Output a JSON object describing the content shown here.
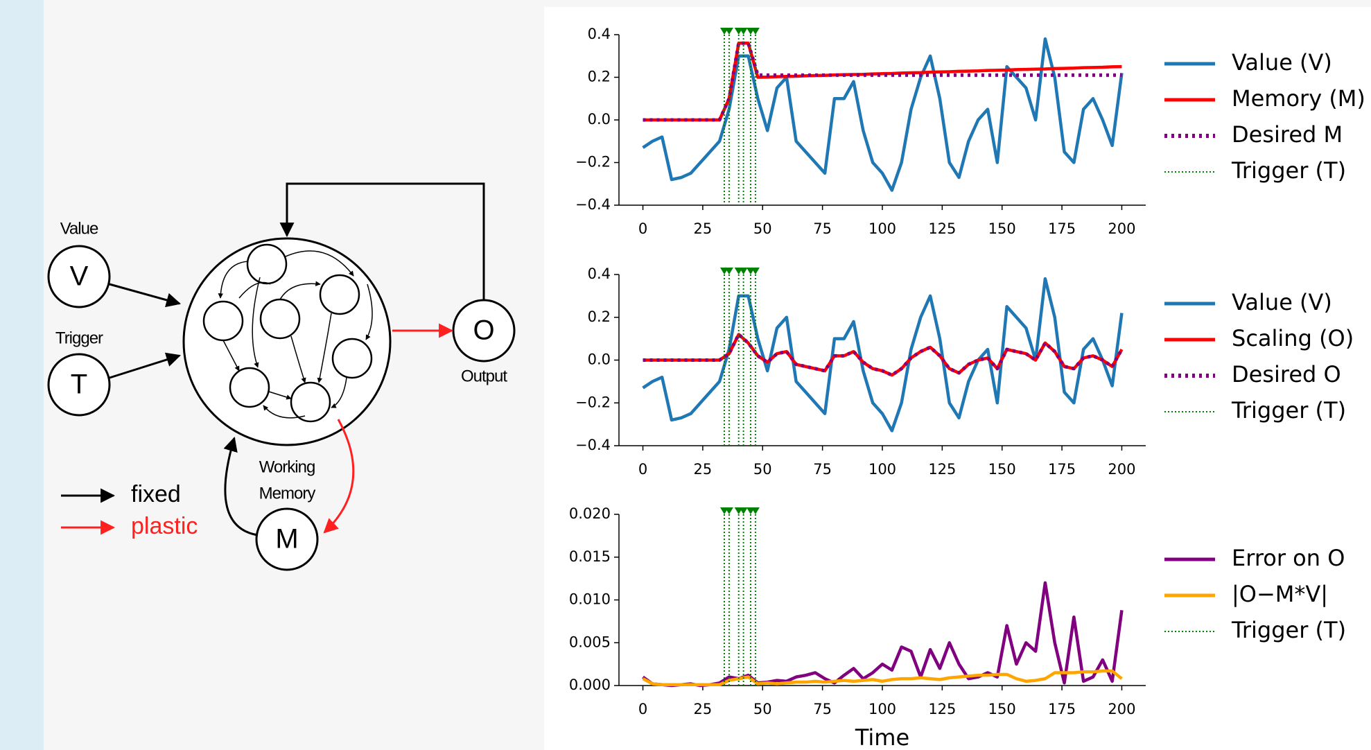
{
  "diagram": {
    "nodes": [
      {
        "letter": "V",
        "label": "Value"
      },
      {
        "letter": "T",
        "label": "Trigger"
      },
      {
        "letter": "O",
        "label": "Output"
      },
      {
        "letter": "M",
        "label": [
          "Working",
          "Memory"
        ]
      }
    ],
    "legend": {
      "fixed": "fixed",
      "plastic": "plastic"
    }
  },
  "chart_data": [
    {
      "type": "line",
      "x": [
        0,
        4,
        8,
        12,
        16,
        20,
        24,
        28,
        32,
        36,
        40,
        44,
        48,
        52,
        56,
        60,
        64,
        68,
        72,
        76,
        80,
        84,
        88,
        92,
        96,
        100,
        104,
        108,
        112,
        116,
        120,
        124,
        128,
        132,
        136,
        140,
        144,
        148,
        152,
        156,
        160,
        164,
        168,
        172,
        176,
        180,
        184,
        188,
        192,
        196,
        200
      ],
      "xlim": [
        -10,
        210
      ],
      "xticks": [
        0,
        25,
        50,
        75,
        100,
        125,
        150,
        175,
        200
      ],
      "ylim": [
        -0.4,
        0.4
      ],
      "yticks": [
        {
          "value": -0.4,
          "label": "−0.4"
        },
        {
          "value": -0.2,
          "label": "−0.2"
        },
        {
          "value": 0,
          "label": "0.0"
        },
        0.2,
        0.4
      ],
      "series": [
        {
          "name": "Value (V)",
          "color": "#1f77b4",
          "linestyle": "solid",
          "values": [
            -0.13,
            -0.1,
            -0.08,
            -0.28,
            -0.27,
            -0.25,
            -0.2,
            -0.15,
            -0.1,
            0.05,
            0.3,
            0.3,
            0.1,
            -0.05,
            0.15,
            0.2,
            -0.1,
            -0.15,
            -0.2,
            -0.25,
            0.1,
            0.1,
            0.18,
            -0.05,
            -0.2,
            -0.25,
            -0.33,
            -0.2,
            0.05,
            0.2,
            0.3,
            0.1,
            -0.2,
            -0.27,
            -0.1,
            0.0,
            0.05,
            -0.2,
            0.25,
            0.2,
            0.15,
            0.0,
            0.38,
            0.2,
            -0.15,
            -0.2,
            0.05,
            0.1,
            0.0,
            -0.12,
            0.22
          ]
        },
        {
          "name": "Memory (M)",
          "color": "#ff0000",
          "linestyle": "solid",
          "values": [
            0,
            0,
            0,
            0,
            0,
            0,
            0,
            0,
            0,
            0.1,
            0.36,
            0.36,
            0.2,
            0.201,
            0.203,
            0.204,
            0.205,
            0.207,
            0.208,
            0.209,
            0.211,
            0.212,
            0.213,
            0.214,
            0.216,
            0.217,
            0.218,
            0.22,
            0.221,
            0.222,
            0.224,
            0.225,
            0.226,
            0.228,
            0.229,
            0.23,
            0.232,
            0.233,
            0.234,
            0.236,
            0.237,
            0.238,
            0.239,
            0.241,
            0.242,
            0.243,
            0.245,
            0.246,
            0.247,
            0.249,
            0.25
          ]
        },
        {
          "name": "Desired M",
          "color": "#800080",
          "linestyle": "dotted",
          "values": [
            0,
            0,
            0,
            0,
            0,
            0,
            0,
            0,
            0,
            0.1,
            0.36,
            0.36,
            0.21,
            0.21,
            0.21,
            0.21,
            0.21,
            0.21,
            0.21,
            0.21,
            0.21,
            0.21,
            0.21,
            0.21,
            0.21,
            0.21,
            0.21,
            0.21,
            0.21,
            0.21,
            0.21,
            0.21,
            0.21,
            0.21,
            0.21,
            0.21,
            0.21,
            0.21,
            0.21,
            0.21,
            0.21,
            0.21,
            0.21,
            0.21,
            0.21,
            0.21,
            0.21,
            0.21,
            0.21,
            0.21,
            0.21
          ]
        }
      ],
      "triggers": {
        "name": "Trigger (T)",
        "color": "#008000",
        "x": [
          34,
          36,
          40,
          42,
          45,
          47
        ]
      }
    },
    {
      "type": "line",
      "x": [
        0,
        4,
        8,
        12,
        16,
        20,
        24,
        28,
        32,
        36,
        40,
        44,
        48,
        52,
        56,
        60,
        64,
        68,
        72,
        76,
        80,
        84,
        88,
        92,
        96,
        100,
        104,
        108,
        112,
        116,
        120,
        124,
        128,
        132,
        136,
        140,
        144,
        148,
        152,
        156,
        160,
        164,
        168,
        172,
        176,
        180,
        184,
        188,
        192,
        196,
        200
      ],
      "xlim": [
        -10,
        210
      ],
      "xticks": [
        0,
        25,
        50,
        75,
        100,
        125,
        150,
        175,
        200
      ],
      "ylim": [
        -0.4,
        0.4
      ],
      "yticks": [
        {
          "value": -0.4,
          "label": "−0.4"
        },
        {
          "value": -0.2,
          "label": "−0.2"
        },
        {
          "value": 0,
          "label": "0.0"
        },
        0.2,
        0.4
      ],
      "series": [
        {
          "name": "Value (V)",
          "color": "#1f77b4",
          "linestyle": "solid",
          "values": [
            -0.13,
            -0.1,
            -0.08,
            -0.28,
            -0.27,
            -0.25,
            -0.2,
            -0.15,
            -0.1,
            0.05,
            0.3,
            0.3,
            0.1,
            -0.05,
            0.15,
            0.2,
            -0.1,
            -0.15,
            -0.2,
            -0.25,
            0.1,
            0.1,
            0.18,
            -0.05,
            -0.2,
            -0.25,
            -0.33,
            -0.2,
            0.05,
            0.2,
            0.3,
            0.1,
            -0.2,
            -0.27,
            -0.1,
            0.0,
            0.05,
            -0.2,
            0.25,
            0.2,
            0.15,
            0.0,
            0.38,
            0.2,
            -0.15,
            -0.2,
            0.05,
            0.1,
            0.0,
            -0.12,
            0.22
          ]
        },
        {
          "name": "Scaling (O)",
          "color": "#ff0000",
          "linestyle": "solid",
          "values": [
            0,
            0,
            0,
            0,
            0,
            0,
            0,
            0,
            0,
            0.03,
            0.12,
            0.08,
            0.02,
            -0.01,
            0.03,
            0.04,
            -0.02,
            -0.03,
            -0.04,
            -0.05,
            0.02,
            0.02,
            0.04,
            -0.01,
            -0.04,
            -0.05,
            -0.07,
            -0.04,
            0.01,
            0.04,
            0.06,
            0.02,
            -0.04,
            -0.06,
            -0.02,
            0.0,
            0.01,
            -0.04,
            0.05,
            0.04,
            0.03,
            0.0,
            0.08,
            0.04,
            -0.03,
            -0.04,
            0.01,
            0.02,
            0.0,
            -0.03,
            0.05
          ]
        },
        {
          "name": "Desired O",
          "color": "#800080",
          "linestyle": "dotted",
          "values": [
            0,
            0,
            0,
            0,
            0,
            0,
            0,
            0,
            0,
            0.03,
            0.12,
            0.08,
            0.02,
            -0.01,
            0.03,
            0.04,
            -0.02,
            -0.03,
            -0.04,
            -0.05,
            0.02,
            0.02,
            0.04,
            -0.01,
            -0.04,
            -0.05,
            -0.07,
            -0.04,
            0.01,
            0.04,
            0.06,
            0.02,
            -0.04,
            -0.06,
            -0.02,
            0.0,
            0.01,
            -0.04,
            0.05,
            0.04,
            0.03,
            0.0,
            0.08,
            0.04,
            -0.03,
            -0.04,
            0.01,
            0.02,
            0.0,
            -0.03,
            0.05
          ]
        }
      ],
      "triggers": {
        "name": "Trigger (T)",
        "color": "#008000",
        "x": [
          34,
          36,
          40,
          42,
          45,
          47
        ]
      }
    },
    {
      "type": "line",
      "x": [
        0,
        4,
        8,
        12,
        16,
        20,
        24,
        28,
        32,
        36,
        40,
        44,
        48,
        52,
        56,
        60,
        64,
        68,
        72,
        76,
        80,
        84,
        88,
        92,
        96,
        100,
        104,
        108,
        112,
        116,
        120,
        124,
        128,
        132,
        136,
        140,
        144,
        148,
        152,
        156,
        160,
        164,
        168,
        172,
        176,
        180,
        184,
        188,
        192,
        196,
        200
      ],
      "xlabel": "Time",
      "xlim": [
        -10,
        210
      ],
      "xticks": [
        0,
        25,
        50,
        75,
        100,
        125,
        150,
        175,
        200
      ],
      "ylim": [
        0,
        0.02
      ],
      "yticks": [
        {
          "value": 0,
          "label": "0.000"
        },
        {
          "value": 0.005,
          "label": "0.005"
        },
        {
          "value": 0.01,
          "label": "0.010"
        },
        {
          "value": 0.015,
          "label": "0.015"
        },
        {
          "value": 0.02,
          "label": "0.020"
        }
      ],
      "series": [
        {
          "name": "Error on O",
          "color": "#800080",
          "linestyle": "solid",
          "values": [
            0.001,
            0.0002,
            0.0001,
            0,
            0.0001,
            0.0002,
            0,
            0.0001,
            0.0003,
            0.001,
            0.0008,
            0.0012,
            0.0003,
            0.0004,
            0.0006,
            0.0005,
            0.001,
            0.0012,
            0.0015,
            0.0008,
            0.0003,
            0.0012,
            0.002,
            0.0008,
            0.0015,
            0.0025,
            0.0018,
            0.0045,
            0.004,
            0.001,
            0.0042,
            0.002,
            0.005,
            0.0025,
            0.0008,
            0.001,
            0.0015,
            0.001,
            0.007,
            0.0025,
            0.005,
            0.004,
            0.012,
            0.005,
            0.0003,
            0.008,
            0.0005,
            0.001,
            0.003,
            0.0005,
            0.0088
          ]
        },
        {
          "name": "|O−M*V|",
          "color": "#ffa500",
          "linestyle": "solid",
          "values": [
            0.0008,
            0.0002,
            0.0001,
            0.0001,
            0.0001,
            0.0001,
            0.0001,
            0.0001,
            0.0001,
            0.0006,
            0.0008,
            0.001,
            0.0002,
            0.0003,
            0.0002,
            0.0003,
            0.0004,
            0.0004,
            0.0005,
            0.0004,
            0.0005,
            0.0006,
            0.0005,
            0.0006,
            0.0007,
            0.0005,
            0.0007,
            0.0008,
            0.0008,
            0.0009,
            0.0008,
            0.0007,
            0.0009,
            0.001,
            0.0011,
            0.0012,
            0.0012,
            0.0013,
            0.0013,
            0.0008,
            0.0005,
            0.0006,
            0.0008,
            0.0015,
            0.0015,
            0.0015,
            0.0016,
            0.0016,
            0.0017,
            0.0017,
            0.0008
          ]
        }
      ],
      "triggers": {
        "name": "Trigger (T)",
        "color": "#008000",
        "x": [
          34,
          36,
          40,
          42,
          45,
          47
        ]
      }
    }
  ]
}
